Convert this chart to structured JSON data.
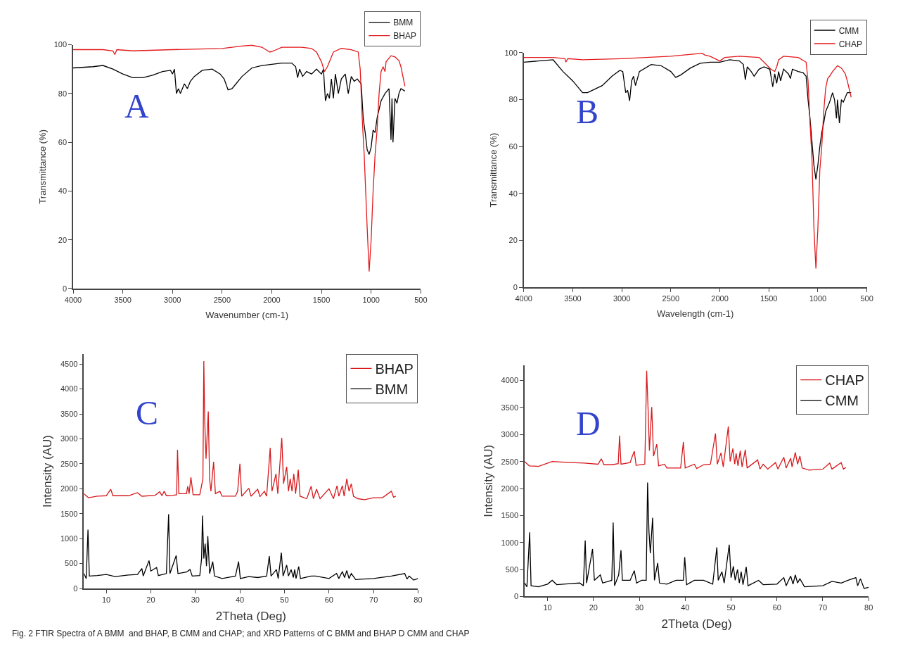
{
  "chart_data": [
    {
      "type": "line",
      "xlabel": "Wavenumber (cm-1)",
      "ylabel": "Transmittance (%)",
      "annotations": [
        "A"
      ],
      "xlim": [
        4000,
        500
      ],
      "xticks": [
        4000,
        3500,
        3000,
        2500,
        2000,
        1500,
        1000,
        500
      ],
      "ylim": [
        0,
        100
      ],
      "yticks": [
        0,
        20,
        40,
        60,
        80,
        100
      ],
      "legend": "top right",
      "marker": "none",
      "line_style": "solid",
      "series": [
        {
          "name": "BMM",
          "color": "#000000",
          "x": [
            4000,
            3800,
            3700,
            3600,
            3500,
            3400,
            3300,
            3200,
            3100,
            3020,
            3000,
            2980,
            2960,
            2940,
            2920,
            2880,
            2850,
            2820,
            2780,
            2700,
            2600,
            2520,
            2480,
            2440,
            2400,
            2360,
            2300,
            2200,
            2100,
            2000,
            1900,
            1800,
            1760,
            1740,
            1720,
            1690,
            1650,
            1600,
            1550,
            1500,
            1480,
            1460,
            1440,
            1420,
            1400,
            1380,
            1360,
            1330,
            1300,
            1260,
            1230,
            1200,
            1170,
            1140,
            1100,
            1080,
            1060,
            1040,
            1020,
            1000,
            980,
            960,
            940,
            900,
            860,
            820,
            800,
            790,
            780,
            760,
            740,
            720,
            700,
            660
          ],
          "values": [
            90.5,
            91,
            91.5,
            90,
            88,
            86.5,
            86.5,
            87.5,
            89,
            89.5,
            88,
            90,
            80,
            82,
            80,
            84,
            82,
            85,
            87,
            89.5,
            90,
            88,
            86,
            81.5,
            82,
            84,
            87,
            90.5,
            91.5,
            92,
            92.5,
            92.5,
            91,
            86.5,
            90,
            87,
            89,
            88,
            90,
            88,
            90,
            77,
            80,
            78,
            86,
            78,
            88,
            80,
            86,
            88,
            80,
            87,
            85,
            86,
            84,
            70,
            64,
            57,
            55,
            58,
            65,
            64,
            70,
            77,
            80,
            82,
            61,
            78,
            60,
            78,
            76,
            80,
            82,
            81
          ]
        },
        {
          "name": "BHAP",
          "color": "#e31a1c",
          "x": [
            4000,
            3700,
            3600,
            3580,
            3560,
            3400,
            3000,
            2500,
            2300,
            2200,
            2100,
            2020,
            1980,
            1900,
            1700,
            1600,
            1550,
            1500,
            1470,
            1440,
            1420,
            1380,
            1300,
            1200,
            1130,
            1110,
            1090,
            1070,
            1060,
            1040,
            1020,
            1000,
            980,
            960,
            940,
            920,
            900,
            880,
            860,
            850,
            800,
            760,
            720,
            700,
            660
          ],
          "values": [
            98,
            98,
            97.5,
            96,
            98,
            97.5,
            98,
            98.5,
            99.5,
            99.8,
            99,
            97,
            97.5,
            99,
            99,
            98.5,
            97,
            93,
            89,
            91,
            93,
            97,
            98.5,
            98,
            97,
            90,
            70,
            55,
            45,
            25,
            7,
            20,
            40,
            55,
            65,
            80,
            89,
            91,
            89,
            93,
            95.5,
            95,
            93.5,
            91,
            83
          ]
        }
      ]
    },
    {
      "type": "line",
      "xlabel": "Wavelength (cm-1)",
      "ylabel": "Transmittance (%)",
      "annotations": [
        "B"
      ],
      "xlim": [
        4000,
        500
      ],
      "xticks": [
        4000,
        3500,
        3000,
        2500,
        2000,
        1500,
        1000,
        500
      ],
      "ylim": [
        0,
        100
      ],
      "yticks": [
        0,
        20,
        40,
        60,
        80,
        100
      ],
      "legend": "top right",
      "marker": "none",
      "line_style": "solid",
      "series": [
        {
          "name": "CMM",
          "color": "#000000",
          "x": [
            4000,
            3700,
            3600,
            3500,
            3400,
            3350,
            3200,
            3100,
            3020,
            2990,
            2960,
            2940,
            2920,
            2900,
            2880,
            2860,
            2820,
            2700,
            2600,
            2500,
            2450,
            2400,
            2300,
            2200,
            2100,
            2000,
            1900,
            1800,
            1760,
            1740,
            1720,
            1680,
            1650,
            1600,
            1550,
            1490,
            1460,
            1440,
            1420,
            1400,
            1380,
            1350,
            1300,
            1280,
            1260,
            1200,
            1150,
            1120,
            1100,
            1080,
            1060,
            1040,
            1020,
            1000,
            980,
            960,
            940,
            920,
            880,
            850,
            830,
            810,
            800,
            780,
            760,
            740,
            700,
            660
          ],
          "values": [
            96,
            97,
            92,
            88,
            83,
            83,
            86,
            90,
            92.5,
            92,
            83,
            84,
            79.5,
            88,
            90,
            86,
            92,
            95,
            94.5,
            92,
            89.5,
            90.5,
            93.5,
            95.5,
            96,
            96,
            97,
            96.5,
            95,
            88.5,
            94,
            92,
            90,
            93,
            94,
            93,
            85.5,
            91,
            87,
            92,
            88,
            93,
            91,
            89,
            93,
            92,
            91.5,
            90,
            80,
            72,
            62,
            52,
            46,
            52,
            60,
            66,
            70,
            75,
            79,
            83,
            80,
            72,
            80,
            70,
            80,
            79,
            83,
            83
          ]
        },
        {
          "name": "CHAP",
          "color": "#e31a1c",
          "x": [
            4000,
            3700,
            3580,
            3570,
            3550,
            3400,
            3000,
            2500,
            2250,
            2180,
            2150,
            2100,
            2000,
            1950,
            1800,
            1600,
            1550,
            1480,
            1440,
            1420,
            1400,
            1350,
            1200,
            1120,
            1100,
            1080,
            1060,
            1040,
            1020,
            1000,
            980,
            960,
            940,
            920,
            900,
            880,
            850,
            800,
            760,
            720,
            700,
            660
          ],
          "values": [
            98,
            98,
            97.5,
            96,
            97.5,
            97,
            97.5,
            98.5,
            99.5,
            99.8,
            99,
            98.5,
            96.5,
            98,
            98.5,
            98,
            96,
            93,
            92,
            94,
            97,
            98.5,
            98,
            96,
            88,
            70,
            55,
            25,
            8,
            25,
            50,
            60,
            75,
            85,
            89,
            90,
            92,
            94.5,
            93.5,
            91,
            88,
            81
          ]
        }
      ]
    },
    {
      "type": "line",
      "xlabel": "2Theta (Deg)",
      "ylabel": "Intensity (AU)",
      "annotations": [
        "C"
      ],
      "xlim": [
        5,
        80
      ],
      "xticks": [
        10,
        20,
        30,
        40,
        50,
        60,
        70,
        80
      ],
      "ylim": [
        0,
        4700
      ],
      "yticks": [
        0,
        500,
        1000,
        1500,
        2000,
        2500,
        3000,
        3500,
        4000,
        4500
      ],
      "legend": "top right",
      "marker": "none",
      "line_style": "solid",
      "series": [
        {
          "name": "BHAP",
          "color": "#d7191c",
          "x": [
            5,
            6,
            8,
            10,
            11,
            11.5,
            15,
            17,
            18,
            21,
            22,
            22.5,
            23,
            23.5,
            25,
            25.8,
            26,
            26.3,
            28,
            28.3,
            28.6,
            29,
            29.5,
            31,
            31.7,
            31.9,
            32.1,
            32.4,
            32.9,
            33.2,
            33.5,
            34.1,
            34.5,
            35.5,
            36,
            39,
            39.5,
            40,
            40.4,
            42,
            42.5,
            44,
            44.5,
            45.5,
            46,
            46.8,
            47.2,
            48.1,
            48.5,
            49.4,
            49.8,
            50.5,
            50.9,
            51.3,
            51.7,
            52.1,
            52.5,
            53.1,
            53.5,
            55,
            56,
            56.5,
            57.2,
            58,
            60,
            61,
            61.8,
            62.2,
            63,
            63.4,
            64,
            64.5,
            65,
            65.5,
            66.5,
            68,
            70,
            72,
            74,
            74.5,
            75
          ],
          "values": [
            1900,
            1820,
            1850,
            1860,
            1990,
            1860,
            1860,
            1920,
            1850,
            1870,
            1940,
            1860,
            1950,
            1860,
            1870,
            1880,
            2780,
            1900,
            1900,
            2050,
            1900,
            2230,
            1880,
            1880,
            2200,
            4560,
            3370,
            2600,
            3550,
            2200,
            1950,
            2540,
            1900,
            1950,
            1850,
            1850,
            1950,
            2500,
            1850,
            2010,
            1850,
            1990,
            1840,
            1950,
            1850,
            2820,
            1950,
            2300,
            1900,
            3020,
            2100,
            2440,
            1950,
            2200,
            1950,
            2300,
            1900,
            2380,
            1850,
            1800,
            2050,
            1800,
            1990,
            1800,
            2000,
            1800,
            2060,
            1850,
            2060,
            1850,
            2200,
            1950,
            2100,
            1850,
            1800,
            1780,
            1820,
            1820,
            1950,
            1830,
            1850
          ]
        },
        {
          "name": "BMM",
          "color": "#000000",
          "x": [
            5,
            5.5,
            5.9,
            6.2,
            8,
            10,
            12,
            15,
            17,
            18,
            18.3,
            19.6,
            20,
            21.3,
            21.7,
            23.5,
            24,
            24.3,
            25.7,
            26.1,
            28,
            28.8,
            29.3,
            31,
            31.4,
            31.6,
            31.9,
            32.2,
            32.5,
            32.8,
            33.2,
            33.9,
            34.3,
            36,
            39,
            39.7,
            40.1,
            42,
            44,
            46,
            46.6,
            47,
            48.2,
            48.6,
            49.3,
            49.7,
            50.5,
            50.9,
            51.5,
            52,
            52.3,
            52.6,
            53.2,
            53.6,
            56,
            57,
            60,
            61.7,
            62.2,
            63,
            63.5,
            64,
            64.5,
            65,
            66,
            70,
            74,
            77,
            77.5,
            78,
            79,
            80
          ],
          "values": [
            300,
            200,
            1180,
            250,
            260,
            280,
            240,
            270,
            280,
            400,
            250,
            560,
            350,
            420,
            260,
            300,
            1490,
            300,
            660,
            300,
            330,
            380,
            250,
            260,
            600,
            1460,
            600,
            900,
            450,
            1050,
            300,
            540,
            250,
            200,
            250,
            540,
            200,
            240,
            220,
            250,
            650,
            250,
            380,
            200,
            720,
            250,
            470,
            250,
            380,
            220,
            380,
            200,
            440,
            200,
            250,
            250,
            200,
            300,
            200,
            340,
            220,
            360,
            200,
            300,
            180,
            200,
            250,
            300,
            190,
            250,
            170,
            200
          ]
        }
      ]
    },
    {
      "type": "line",
      "xlabel": "2Theta (Deg)",
      "ylabel": "Intensity (AU)",
      "annotations": [
        "D",
        "Fig. 2 FTIR Spectra of A BMM  and BHAP, B CMM and CHAP; and XRD Patterns of C BMM and BHAP D CMM and CHAP"
      ],
      "xlim": [
        5,
        80
      ],
      "xticks": [
        10,
        20,
        30,
        40,
        50,
        60,
        70,
        80
      ],
      "ylim": [
        0,
        4280
      ],
      "yticks": [
        0,
        500,
        1000,
        1500,
        2000,
        2500,
        3000,
        3500,
        4000
      ],
      "legend": "top right",
      "marker": "none",
      "line_style": "solid",
      "series": [
        {
          "name": "CHAP",
          "color": "#d7191c",
          "x": [
            5,
            6,
            8,
            11,
            15,
            18,
            21,
            21.7,
            22.3,
            24,
            25.4,
            25.7,
            26,
            28,
            28.4,
            28.9,
            29.3,
            31.2,
            31.6,
            31.9,
            32.2,
            32.7,
            33.1,
            33.8,
            34.2,
            35.5,
            36,
            39,
            39.6,
            40,
            42,
            42.5,
            44,
            45.5,
            46.6,
            47,
            47.8,
            48.3,
            49.4,
            49.8,
            50.4,
            50.8,
            51.1,
            51.5,
            52,
            52.4,
            53.1,
            53.5,
            55.8,
            56.3,
            57,
            58,
            59.7,
            60.2,
            61.5,
            62,
            63,
            63.3,
            64,
            64.5,
            65,
            65.5,
            67,
            70,
            71.5,
            72,
            74,
            74.5,
            75
          ],
          "values": [
            2500,
            2420,
            2410,
            2500,
            2480,
            2470,
            2450,
            2550,
            2440,
            2440,
            2460,
            2980,
            2450,
            2480,
            2580,
            2690,
            2430,
            2450,
            4180,
            3500,
            2700,
            3510,
            2600,
            2820,
            2420,
            2450,
            2380,
            2380,
            2860,
            2380,
            2450,
            2370,
            2440,
            2450,
            3020,
            2450,
            2660,
            2400,
            3150,
            2500,
            2740,
            2450,
            2650,
            2420,
            2700,
            2400,
            2720,
            2380,
            2530,
            2360,
            2450,
            2360,
            2480,
            2360,
            2580,
            2380,
            2560,
            2400,
            2670,
            2450,
            2600,
            2380,
            2340,
            2360,
            2470,
            2360,
            2480,
            2360,
            2390
          ]
        },
        {
          "name": "CMM",
          "color": "#000000",
          "x": [
            5,
            5.5,
            6.1,
            6.4,
            8,
            10,
            11,
            12,
            15,
            17,
            17.8,
            18.2,
            18.5,
            19.8,
            20.2,
            21.5,
            22,
            24,
            24.3,
            24.6,
            25.5,
            26,
            26.3,
            28,
            28.9,
            29.4,
            30.5,
            31.5,
            31.8,
            32.1,
            32.4,
            32.9,
            33.3,
            34,
            34.4,
            36,
            38,
            39.6,
            39.9,
            40.3,
            42,
            44,
            46,
            46.9,
            47.2,
            48,
            48.5,
            49.6,
            50,
            50.5,
            50.9,
            51.4,
            51.8,
            52.2,
            52.6,
            53.3,
            53.7,
            56,
            57,
            60,
            61.5,
            62,
            63,
            63.5,
            64,
            64.5,
            65,
            66,
            70,
            72,
            74,
            75.5,
            77.2,
            77.6,
            78.2,
            79,
            80
          ],
          "values": [
            250,
            180,
            1190,
            200,
            180,
            230,
            300,
            220,
            240,
            250,
            200,
            1040,
            250,
            880,
            300,
            400,
            250,
            300,
            1370,
            200,
            400,
            860,
            300,
            300,
            480,
            250,
            300,
            300,
            2110,
            1200,
            800,
            1460,
            300,
            620,
            250,
            230,
            300,
            300,
            730,
            220,
            300,
            300,
            230,
            910,
            300,
            460,
            250,
            960,
            350,
            560,
            300,
            500,
            250,
            460,
            220,
            550,
            200,
            300,
            220,
            230,
            350,
            200,
            380,
            230,
            400,
            250,
            330,
            180,
            200,
            280,
            250,
            300,
            350,
            200,
            330,
            150,
            170
          ]
        }
      ]
    }
  ]
}
